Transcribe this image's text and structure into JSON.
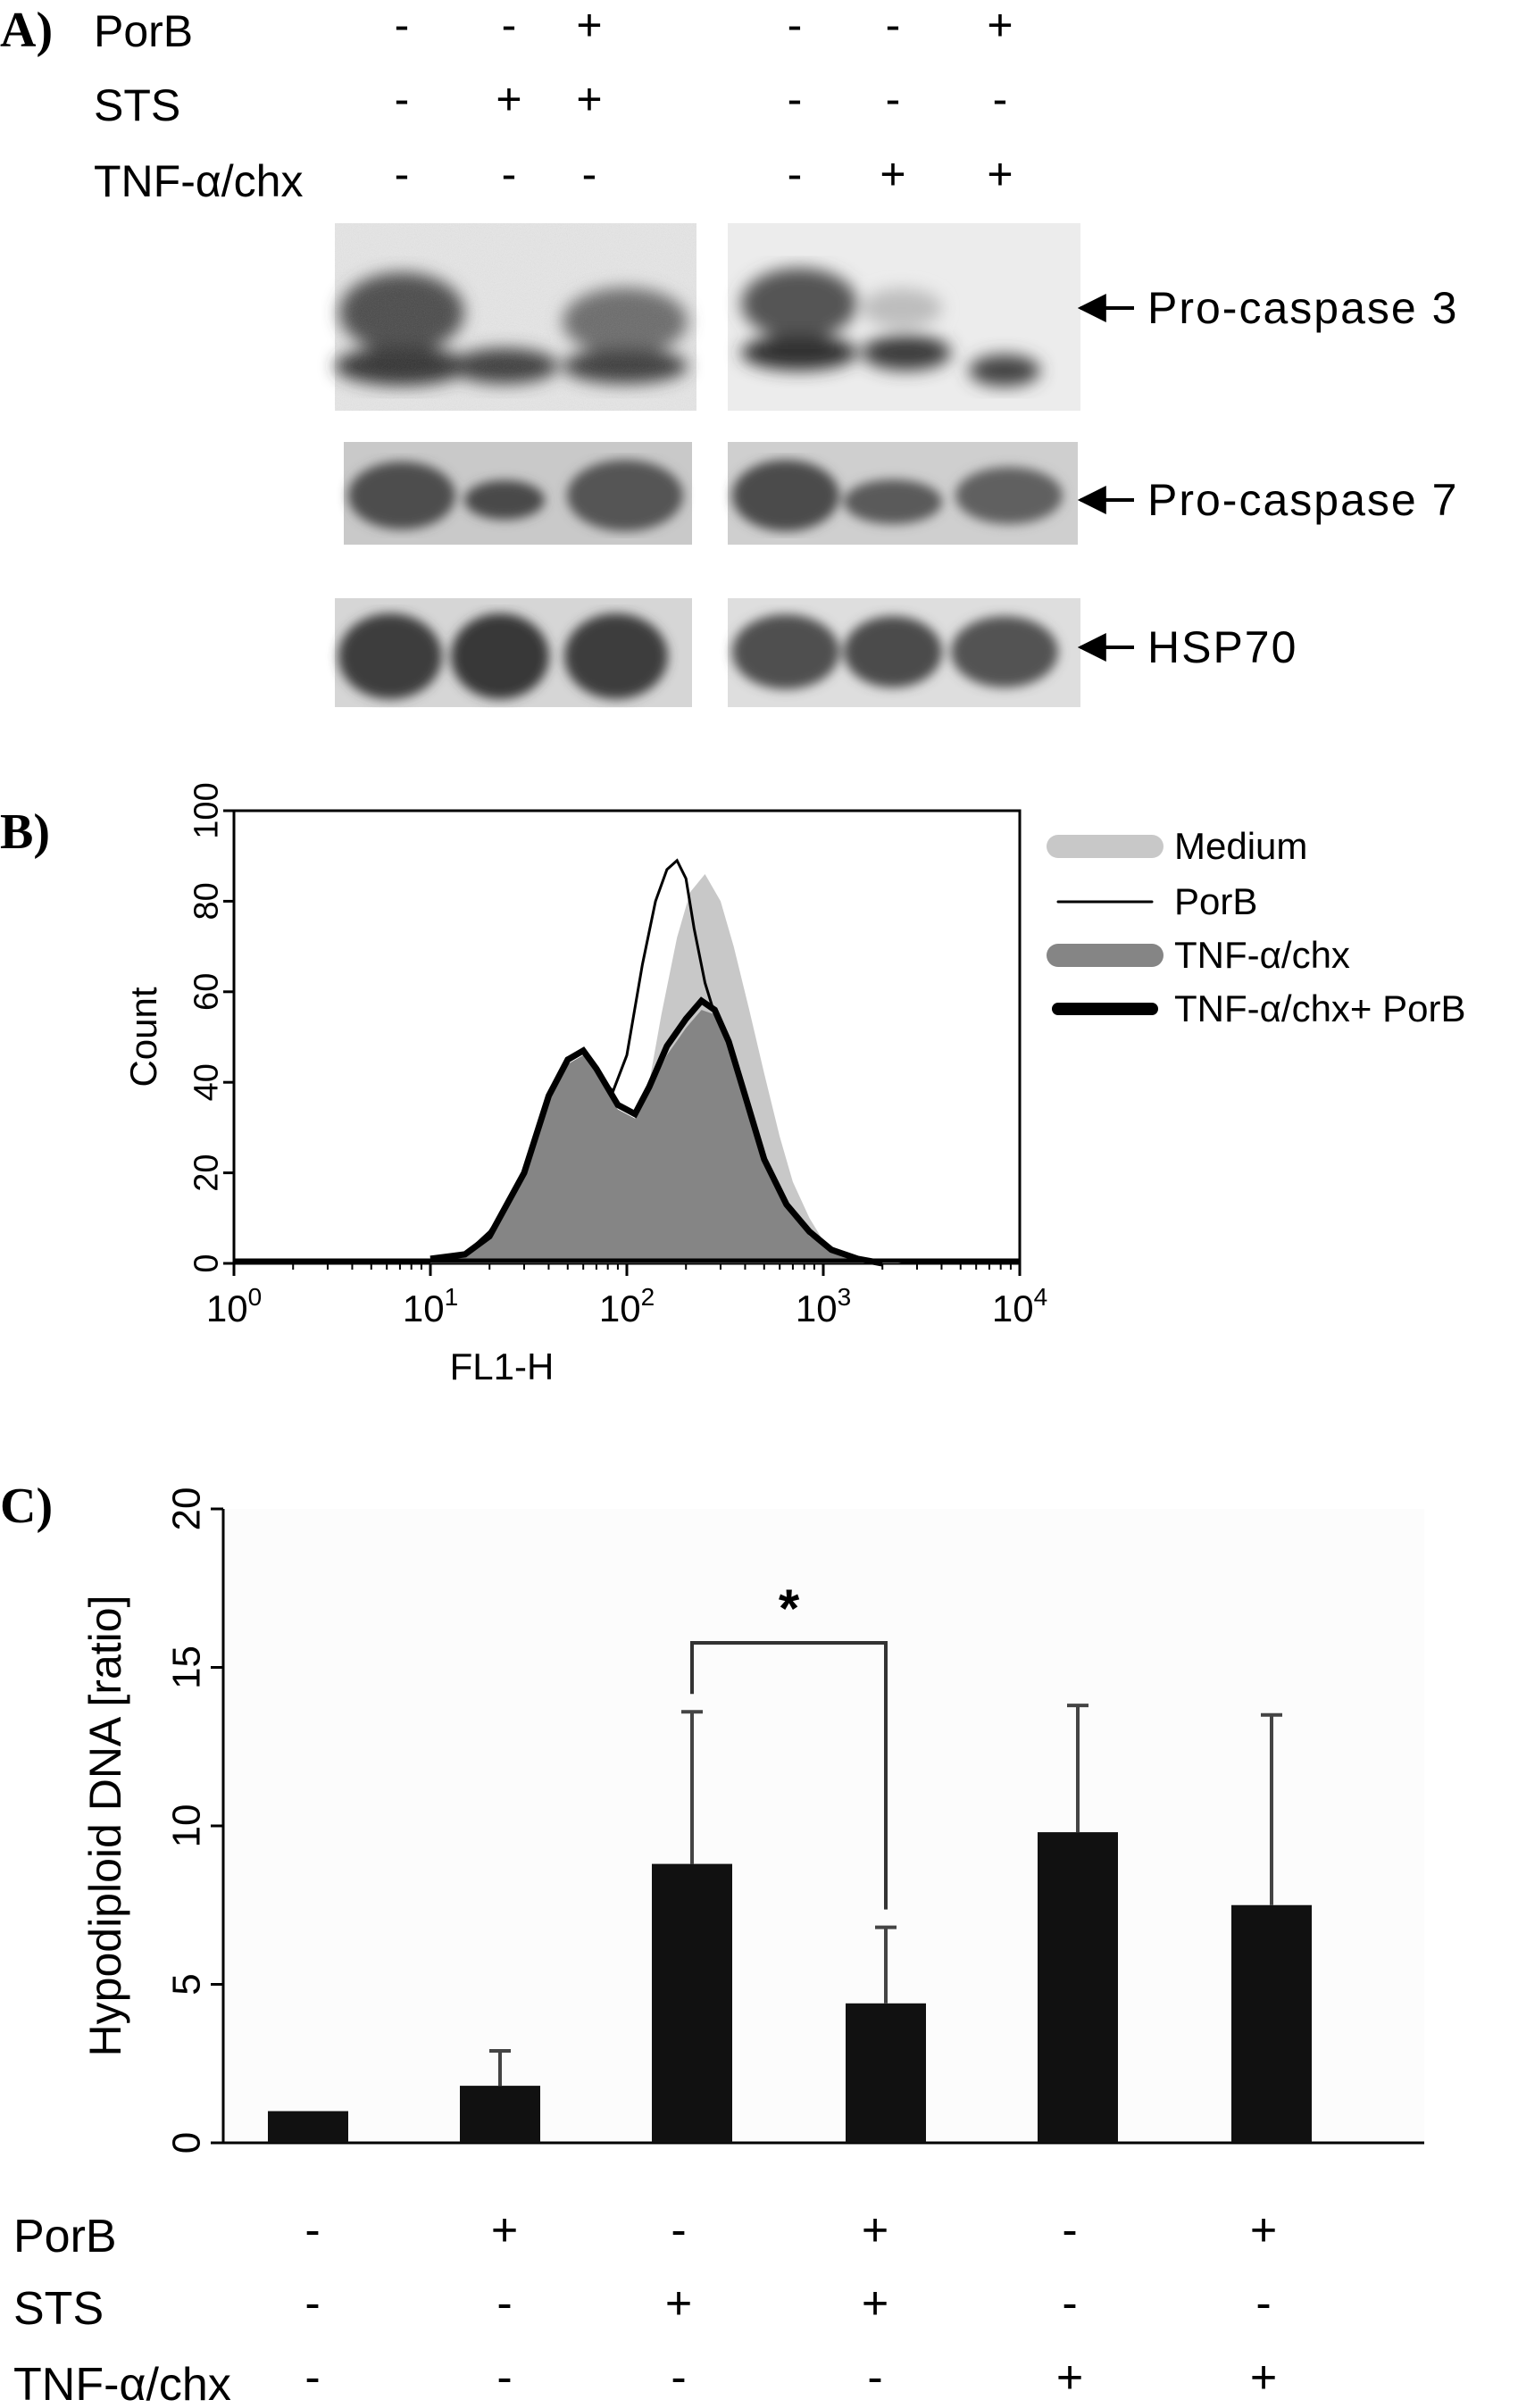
{
  "panel_a": {
    "letter": "A)",
    "conditions": [
      {
        "name": "PorB",
        "signs": [
          "-",
          "-",
          "+",
          "-",
          "-",
          "+"
        ]
      },
      {
        "name": "STS",
        "signs": [
          "-",
          "+",
          "+",
          "-",
          "-",
          "-"
        ]
      },
      {
        "name": "TNF-α/chx",
        "signs": [
          "-",
          "-",
          "-",
          "-",
          "+",
          "+"
        ]
      }
    ],
    "bands": [
      {
        "label": "Pro-caspase 3"
      },
      {
        "label": "Pro-caspase 7"
      },
      {
        "label": "HSP70"
      }
    ]
  },
  "panel_b": {
    "letter": "B)"
  },
  "panel_c": {
    "letter": "C)",
    "significance_marker": "*",
    "conditions": [
      {
        "name": "PorB",
        "signs": [
          "-",
          "+",
          "-",
          "+",
          "-",
          "+"
        ]
      },
      {
        "name": "STS",
        "signs": [
          "-",
          "-",
          "+",
          "+",
          "-",
          "-"
        ]
      },
      {
        "name": "TNF-α/chx",
        "signs": [
          "-",
          "-",
          "-",
          "-",
          "+",
          "+"
        ]
      }
    ]
  },
  "chart_data": [
    {
      "type": "area",
      "panel": "B",
      "xlabel": "FL1-H",
      "ylabel": "Count",
      "x_scale": "log",
      "xlim": [
        1,
        10000
      ],
      "ylim": [
        0,
        100
      ],
      "x_ticks": [
        1,
        10,
        100,
        1000,
        10000
      ],
      "x_tick_labels": [
        {
          "base": "10",
          "exp": "0"
        },
        {
          "base": "10",
          "exp": "1"
        },
        {
          "base": "10",
          "exp": "2"
        },
        {
          "base": "10",
          "exp": "3"
        },
        {
          "base": "10",
          "exp": "4"
        }
      ],
      "y_ticks": [
        "0",
        "20",
        "40",
        "60",
        "80",
        "100"
      ],
      "legend": "right",
      "series": [
        {
          "name": "Medium",
          "style": "fill",
          "color": "#c8c8c8",
          "x": [
            10,
            15,
            20,
            30,
            40,
            55,
            70,
            90,
            110,
            130,
            150,
            180,
            210,
            250,
            300,
            350,
            420,
            500,
            600,
            700,
            850,
            1000,
            1300,
            1700,
            2500
          ],
          "y": [
            1,
            2,
            7,
            18,
            30,
            40,
            38,
            28,
            30,
            40,
            55,
            72,
            82,
            86,
            80,
            70,
            56,
            42,
            28,
            18,
            10,
            5,
            2,
            1,
            0
          ]
        },
        {
          "name": "PorB",
          "style": "line",
          "color": "#000000",
          "x": [
            10,
            15,
            20,
            30,
            40,
            55,
            70,
            85,
            100,
            120,
            140,
            160,
            180,
            200,
            220,
            250,
            280,
            320,
            380,
            450,
            550,
            700,
            900,
            1200,
            1800
          ],
          "y": [
            1,
            2,
            7,
            18,
            32,
            44,
            42,
            38,
            46,
            66,
            80,
            87,
            89,
            85,
            74,
            62,
            55,
            46,
            32,
            20,
            10,
            5,
            2,
            1,
            0
          ]
        },
        {
          "name": "TNF-α/chx",
          "style": "fill",
          "color": "#858585",
          "x": [
            10,
            15,
            20,
            30,
            40,
            50,
            60,
            70,
            90,
            110,
            130,
            160,
            200,
            240,
            280,
            330,
            400,
            500,
            650,
            850,
            1100,
            1500,
            2000
          ],
          "y": [
            1,
            2,
            6,
            20,
            36,
            44,
            46,
            42,
            34,
            32,
            38,
            46,
            52,
            56,
            55,
            48,
            36,
            22,
            12,
            6,
            3,
            1,
            0
          ]
        },
        {
          "name": "TNF-α/chx+ PorB",
          "style": "thick-line",
          "color": "#000000",
          "x": [
            10,
            15,
            20,
            30,
            40,
            50,
            60,
            70,
            90,
            110,
            130,
            160,
            200,
            240,
            280,
            330,
            400,
            500,
            650,
            850,
            1100,
            1500,
            2000
          ],
          "y": [
            1,
            2,
            6,
            20,
            37,
            45,
            47,
            43,
            35,
            33,
            39,
            48,
            54,
            58,
            56,
            49,
            37,
            23,
            13,
            7,
            3,
            1,
            0
          ]
        }
      ]
    },
    {
      "type": "bar",
      "panel": "C",
      "ylabel": "Hypodiploid DNA [ratio]",
      "ylim": [
        0,
        20
      ],
      "y_ticks": [
        "0",
        "5",
        "10",
        "15",
        "20"
      ],
      "categories": [
        "1",
        "2",
        "3",
        "4",
        "5",
        "6"
      ],
      "values": [
        1.0,
        1.8,
        8.8,
        4.4,
        9.8,
        7.5
      ],
      "errors": [
        0,
        1.1,
        4.8,
        2.4,
        4.0,
        6.0
      ],
      "bar_color": "#111111",
      "significance": {
        "from": 3,
        "to": 4,
        "label": "*"
      }
    }
  ]
}
